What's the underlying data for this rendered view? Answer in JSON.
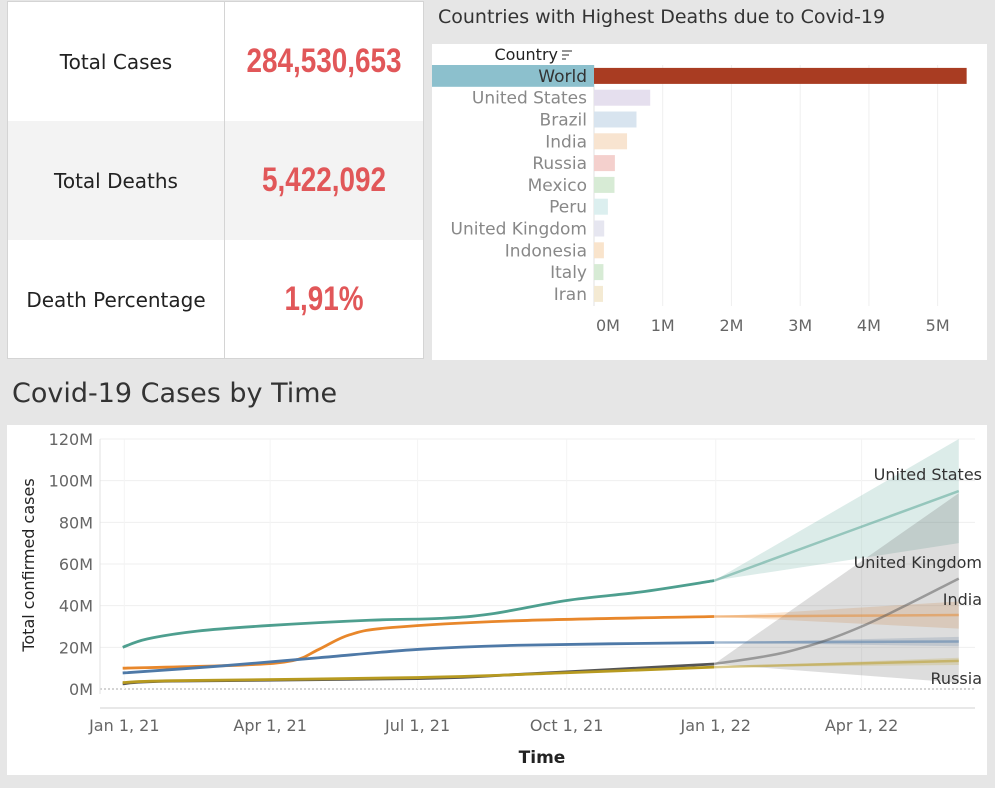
{
  "kpis": [
    {
      "label": "Total Cases",
      "value": "284,530,653"
    },
    {
      "label": "Total Deaths",
      "value": "5,422,092"
    },
    {
      "label": "Death Percentage",
      "value": "1,91%"
    }
  ],
  "bar_title": "Countries with Highest Deaths due to Covid-19",
  "line_title": "Covid-19 Cases by Time",
  "chart_data": [
    {
      "type": "bar",
      "orientation": "horizontal",
      "title": "Countries with Highest Deaths due to Covid-19",
      "category_header": "Country",
      "categories": [
        "World",
        "United States",
        "Brazil",
        "India",
        "Russia",
        "Mexico",
        "Peru",
        "United Kingdom",
        "Indonesia",
        "Italy",
        "Iran"
      ],
      "values": [
        5422092,
        818000,
        618000,
        481000,
        304000,
        298000,
        202000,
        148000,
        144000,
        137000,
        131000
      ],
      "colors": [
        "#a93c22",
        "#e5dfee",
        "#d8e4ef",
        "#f8e4d0",
        "#f4d0cd",
        "#d7ebd5",
        "#dcefef",
        "#e6e6f0",
        "#f9e4cc",
        "#d7ebd5",
        "#f4ead3"
      ],
      "highlight_label_bg": "#8cc0cd",
      "xticks": [
        "0M",
        "1M",
        "2M",
        "3M",
        "4M",
        "5M"
      ],
      "xlim": [
        0,
        5500000
      ],
      "grid": true
    },
    {
      "type": "line",
      "title": "Covid-19 Cases by Time",
      "xlabel": "Time",
      "ylabel": "Total confirmed cases",
      "ylim": [
        0,
        120000000
      ],
      "yticks": [
        "0M",
        "20M",
        "40M",
        "60M",
        "80M",
        "100M",
        "120M"
      ],
      "xticks": [
        "Jan 1, 21",
        "Apr 1, 21",
        "Jul 1, 21",
        "Oct 1, 21",
        "Jan 1, 22",
        "Apr 1, 22"
      ],
      "x_range": [
        "2020-12-17",
        "2022-06-10"
      ],
      "series": [
        {
          "name": "United States",
          "color": "#4e9f8f",
          "label_shown": true,
          "points": [
            [
              "2020-12-31",
              20000000
            ],
            [
              "2021-01-15",
              24000000
            ],
            [
              "2021-02-15",
              27800000
            ],
            [
              "2021-04-01",
              30500000
            ],
            [
              "2021-06-01",
              33000000
            ],
            [
              "2021-07-15",
              33900000
            ],
            [
              "2021-08-15",
              36000000
            ],
            [
              "2021-10-01",
              42500000
            ],
            [
              "2021-11-15",
              46500000
            ],
            [
              "2021-12-31",
              52000000
            ]
          ],
          "forecast": [
            [
              "2021-12-31",
              52000000
            ],
            [
              "2022-05-31",
              95000000
            ]
          ],
          "band": [
            [
              "2021-12-31",
              52000000,
              52000000
            ],
            [
              "2022-05-31",
              120000000,
              70000000
            ]
          ]
        },
        {
          "name": "India",
          "color": "#e8872b",
          "label_shown": true,
          "points": [
            [
              "2020-12-31",
              10000000
            ],
            [
              "2021-03-15",
              11500000
            ],
            [
              "2021-04-15",
              13600000
            ],
            [
              "2021-05-01",
              19000000
            ],
            [
              "2021-05-20",
              26000000
            ],
            [
              "2021-06-15",
              29500000
            ],
            [
              "2021-09-01",
              32800000
            ],
            [
              "2021-12-31",
              34800000
            ]
          ],
          "forecast": [
            [
              "2021-12-31",
              34800000
            ],
            [
              "2022-05-31",
              35500000
            ]
          ],
          "band": [
            [
              "2021-12-31",
              34800000,
              34800000
            ],
            [
              "2022-05-31",
              42000000,
              29000000
            ]
          ]
        },
        {
          "name": "Brazil",
          "color": "#4e79a7",
          "label_shown": false,
          "points": [
            [
              "2020-12-31",
              7700000
            ],
            [
              "2021-03-01",
              11000000
            ],
            [
              "2021-05-01",
              15000000
            ],
            [
              "2021-07-01",
              19000000
            ],
            [
              "2021-09-01",
              21000000
            ],
            [
              "2021-12-31",
              22300000
            ]
          ],
          "forecast": [
            [
              "2021-12-31",
              22300000
            ],
            [
              "2022-05-31",
              22800000
            ]
          ],
          "band": [
            [
              "2021-12-31",
              22300000,
              22300000
            ],
            [
              "2022-05-31",
              25000000,
              20500000
            ]
          ]
        },
        {
          "name": "United Kingdom",
          "color": "#555555",
          "label_shown": true,
          "points": [
            [
              "2020-12-31",
              2500000
            ],
            [
              "2021-01-31",
              3800000
            ],
            [
              "2021-07-01",
              5000000
            ],
            [
              "2021-09-01",
              7000000
            ],
            [
              "2021-12-31",
              12000000
            ]
          ],
          "forecast": [
            [
              "2021-12-31",
              12000000
            ],
            [
              "2022-02-15",
              18000000
            ],
            [
              "2022-04-01",
              30000000
            ],
            [
              "2022-05-31",
              53000000
            ]
          ],
          "band": [
            [
              "2021-12-31",
              12000000,
              12000000
            ],
            [
              "2022-05-31",
              94000000,
              3000000
            ]
          ]
        },
        {
          "name": "Russia",
          "color": "#b79a20",
          "label_shown": true,
          "points": [
            [
              "2020-12-31",
              3100000
            ],
            [
              "2021-02-01",
              4000000
            ],
            [
              "2021-07-01",
              5500000
            ],
            [
              "2021-10-01",
              7800000
            ],
            [
              "2021-12-31",
              10500000
            ]
          ],
          "forecast": [
            [
              "2021-12-31",
              10500000
            ],
            [
              "2022-05-31",
              13500000
            ]
          ],
          "band": [
            [
              "2021-12-31",
              10500000,
              10500000
            ],
            [
              "2022-05-31",
              15000000,
              11500000
            ]
          ]
        }
      ]
    }
  ]
}
